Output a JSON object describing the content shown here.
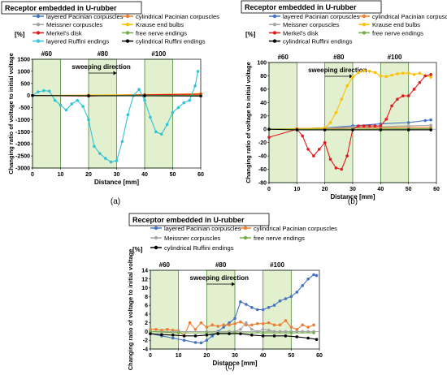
{
  "colors": {
    "layered_pacinian": "#4472c4",
    "cylindrical_pacinian": "#ed7d31",
    "meissner": "#a5a5a5",
    "krause": "#ffc000",
    "merkel": "#e31a1c",
    "free_nerve": "#70ad47",
    "layered_ruffini": "#33c3d6",
    "cylindrical_ruffini": "#000000",
    "zone_fill": "#e2f0d0",
    "zone_stroke": "#4c8a3a"
  },
  "chart_data": [
    {
      "type": "line",
      "panel_label": "(a)",
      "title": "Receptor embedded in U-rubber",
      "xlabel": "Distance  [mm]",
      "ylabel": "Changing ratio of voltage to initial voltage",
      "yunit": "[%]",
      "xlim": [
        0,
        60
      ],
      "ylim": [
        -3000,
        1500
      ],
      "xticks": [
        "0",
        "10",
        "20",
        "30",
        "40",
        "50",
        "60"
      ],
      "yticks": [
        "1500",
        "1000",
        "500",
        "0",
        "-500",
        "-1000",
        "-1500",
        "-2000",
        "-2500",
        "-3000"
      ],
      "zones": [
        {
          "label": "#60",
          "x": [
            0,
            10
          ]
        },
        {
          "label": "#80",
          "x": [
            20,
            30
          ]
        },
        {
          "label": "#100",
          "x": [
            40,
            50
          ]
        }
      ],
      "arrow_label": "sweeping direction",
      "legend": [
        "layered Pacinian corpuscles",
        "cylindrical Pacinian corpuscles",
        "Meissner corpuscles",
        "Krause end bulbs",
        "Merkel's disk",
        "free nerve endings",
        "layered Ruffini endings",
        "cylindrical Ruffini endings"
      ],
      "series": [
        {
          "name": "layered Pacinian corpuscles",
          "color_key": "layered_pacinian",
          "x": [
            0,
            20,
            40,
            60
          ],
          "y": [
            0,
            5,
            10,
            15
          ]
        },
        {
          "name": "cylindrical Pacinian corpuscles",
          "color_key": "cylindrical_pacinian",
          "x": [
            0,
            20,
            40,
            60
          ],
          "y": [
            0,
            10,
            15,
            20
          ]
        },
        {
          "name": "Meissner corpuscles",
          "color_key": "meissner",
          "x": [
            0,
            20,
            40,
            60
          ],
          "y": [
            0,
            5,
            5,
            10
          ]
        },
        {
          "name": "Krause end bulbs",
          "color_key": "krause",
          "x": [
            0,
            20,
            40,
            60
          ],
          "y": [
            0,
            20,
            40,
            80
          ]
        },
        {
          "name": "Merkel's disk",
          "color_key": "merkel",
          "x": [
            0,
            20,
            40,
            60
          ],
          "y": [
            0,
            -20,
            30,
            60
          ]
        },
        {
          "name": "free nerve endings",
          "color_key": "free_nerve",
          "x": [
            0,
            20,
            40,
            60
          ],
          "y": [
            0,
            0,
            5,
            5
          ]
        },
        {
          "name": "layered Ruffini endings",
          "color_key": "layered_ruffini",
          "x": [
            0,
            2,
            4,
            6,
            8,
            10,
            12,
            14,
            16,
            18,
            20,
            22,
            24,
            26,
            28,
            30,
            32,
            34,
            36,
            38,
            40,
            42,
            44,
            46,
            48,
            50,
            52,
            54,
            56,
            58,
            59
          ],
          "y": [
            0,
            150,
            200,
            180,
            -200,
            -400,
            -600,
            -350,
            -200,
            -450,
            -1000,
            -2100,
            -2400,
            -2600,
            -2750,
            -2700,
            -1900,
            -800,
            0,
            250,
            -200,
            -900,
            -1500,
            -1600,
            -1200,
            -700,
            -500,
            -300,
            -200,
            400,
            1000
          ]
        },
        {
          "name": "cylindrical Ruffini endings",
          "color_key": "cylindrical_ruffini",
          "x": [
            0,
            20,
            40,
            60
          ],
          "y": [
            0,
            -10,
            -10,
            -20
          ]
        }
      ]
    },
    {
      "type": "line",
      "panel_label": "(b)",
      "title": "Receptor embedded in U-rubber",
      "xlabel": "Distance  [mm]",
      "ylabel": "Changing ratio of voltage to initial voltage",
      "yunit": "[%]",
      "xlim": [
        0,
        60
      ],
      "ylim": [
        -80,
        100
      ],
      "xticks": [
        "0",
        "10",
        "20",
        "30",
        "40",
        "50",
        "60"
      ],
      "yticks": [
        "100",
        "80",
        "60",
        "40",
        "20",
        "0",
        "-20",
        "-40",
        "-60",
        "-80"
      ],
      "zones": [
        {
          "label": "#60",
          "x": [
            0,
            10
          ]
        },
        {
          "label": "#80",
          "x": [
            20,
            30
          ]
        },
        {
          "label": "#100",
          "x": [
            40,
            50
          ]
        }
      ],
      "arrow_label": "sweeping direction",
      "legend": [
        "layered Pacinian corpuscles",
        "cylindrical Pacinian corpuscles",
        "Meissner corpuscles",
        "Krause end bulbs",
        "Merkel's disk",
        "free nerve endings",
        "cylindrical Ruffini endings"
      ],
      "series": [
        {
          "name": "layered Pacinian corpuscles",
          "color_key": "layered_pacinian",
          "x": [
            0,
            10,
            20,
            30,
            40,
            50,
            56,
            58
          ],
          "y": [
            0,
            1,
            2,
            5,
            8,
            10,
            13,
            14
          ]
        },
        {
          "name": "cylindrical Pacinian corpuscles",
          "color_key": "cylindrical_pacinian",
          "x": [
            0,
            10,
            20,
            30,
            40,
            50,
            58
          ],
          "y": [
            0,
            0,
            1,
            2,
            2,
            3,
            3
          ]
        },
        {
          "name": "Meissner corpuscles",
          "color_key": "meissner",
          "x": [
            0,
            10,
            20,
            30,
            40,
            50,
            58
          ],
          "y": [
            0,
            1,
            2,
            3,
            4,
            5,
            6
          ]
        },
        {
          "name": "Krause end bulbs",
          "color_key": "krause",
          "x": [
            0,
            10,
            20,
            22,
            24,
            26,
            28,
            30,
            32,
            34,
            36,
            38,
            40,
            42,
            44,
            46,
            48,
            50,
            52,
            54,
            56,
            58
          ],
          "y": [
            0,
            1,
            2,
            10,
            25,
            45,
            65,
            78,
            85,
            88,
            87,
            85,
            80,
            79,
            81,
            83,
            84,
            84,
            82,
            84,
            80,
            78
          ]
        },
        {
          "name": "Merkel's disk",
          "color_key": "merkel",
          "x": [
            0,
            10,
            12,
            14,
            16,
            18,
            20,
            22,
            24,
            26,
            28,
            30,
            32,
            34,
            36,
            38,
            40,
            42,
            44,
            46,
            48,
            50,
            52,
            54,
            56,
            58
          ],
          "y": [
            -12,
            0,
            -10,
            -30,
            -40,
            -30,
            -20,
            -45,
            -58,
            -60,
            -40,
            0,
            5,
            5,
            5,
            5,
            5,
            15,
            35,
            45,
            50,
            50,
            60,
            70,
            80,
            82
          ]
        },
        {
          "name": "free nerve endings",
          "color_key": "free_nerve",
          "x": [
            0,
            30,
            58
          ],
          "y": [
            0,
            0,
            1
          ]
        },
        {
          "name": "cylindrical Ruffini endings",
          "color_key": "cylindrical_ruffini",
          "x": [
            0,
            10,
            20,
            30,
            40,
            50,
            58
          ],
          "y": [
            0,
            -1,
            -1,
            -1,
            -1,
            -1,
            -1
          ]
        }
      ]
    },
    {
      "type": "line",
      "panel_label": "(c)",
      "title": "Receptor embedded in U-rubber",
      "xlabel": "Distance  [mm]",
      "ylabel": "Changing ratio of voltage to initial voltage",
      "yunit": "[%]",
      "xlim": [
        0,
        60
      ],
      "ylim": [
        -4,
        14
      ],
      "xticks": [
        "0",
        "10",
        "20",
        "30",
        "40",
        "50",
        "60"
      ],
      "yticks": [
        "14",
        "12",
        "10",
        "8",
        "6",
        "4",
        "2",
        "0",
        "-2",
        "-4"
      ],
      "zones": [
        {
          "label": "#60",
          "x": [
            0,
            10
          ]
        },
        {
          "label": "#80",
          "x": [
            20,
            30
          ]
        },
        {
          "label": "#100",
          "x": [
            40,
            50
          ]
        }
      ],
      "arrow_label": "sweeping direction",
      "legend": [
        "layered Pacinian corpuscles",
        "cylindrical Pacinian corpuscles",
        "Meissner corpuscles",
        "free nerve endings",
        "cylindrical Ruffini endings"
      ],
      "series": [
        {
          "name": "layered Pacinian corpuscles",
          "color_key": "layered_pacinian",
          "x": [
            0,
            4,
            8,
            12,
            16,
            18,
            20,
            22,
            24,
            26,
            28,
            30,
            32,
            34,
            36,
            38,
            40,
            42,
            44,
            46,
            48,
            50,
            52,
            54,
            56,
            58,
            59
          ],
          "y": [
            -0.5,
            -1,
            -1.5,
            -2,
            -2.5,
            -2.6,
            -2,
            -1,
            0,
            1,
            2,
            3,
            6.8,
            6.2,
            5.5,
            5,
            5,
            5.5,
            6,
            7,
            7.5,
            8,
            9,
            10.5,
            12,
            13,
            12.8
          ]
        },
        {
          "name": "cylindrical Pacinian corpuscles",
          "color_key": "cylindrical_pacinian",
          "x": [
            0,
            2,
            4,
            6,
            8,
            10,
            12,
            14,
            16,
            18,
            20,
            22,
            24,
            26,
            28,
            30,
            32,
            34,
            36,
            38,
            40,
            42,
            44,
            46,
            48,
            50,
            52,
            54,
            56,
            58
          ],
          "y": [
            0.5,
            0.5,
            0.3,
            0.5,
            0.3,
            0.2,
            -1,
            2,
            0.5,
            2,
            1,
            1.5,
            1.2,
            1.5,
            1.5,
            1.8,
            2.2,
            1.5,
            1.5,
            1.8,
            1.8,
            2,
            1.5,
            1.5,
            2.5,
            1,
            0.5,
            1.5,
            1,
            1.5
          ]
        },
        {
          "name": "Meissner corpuscles",
          "color_key": "meissner",
          "x": [
            0,
            10,
            20,
            28,
            30,
            32,
            34,
            36,
            38,
            40,
            42,
            44,
            46,
            48,
            50,
            52,
            54,
            56,
            58
          ],
          "y": [
            0,
            0,
            0,
            0,
            0,
            0.5,
            2,
            0.5,
            0,
            0.5,
            0.3,
            0,
            0,
            0,
            0,
            0,
            0,
            0,
            0
          ]
        },
        {
          "name": "free nerve endings",
          "color_key": "free_nerve",
          "x": [
            0,
            10,
            20,
            30,
            40,
            50,
            58
          ],
          "y": [
            0,
            -0.3,
            -0.3,
            -0.3,
            -0.3,
            -0.3,
            -0.3
          ]
        },
        {
          "name": "cylindrical Ruffini endings",
          "color_key": "cylindrical_ruffini",
          "x": [
            0,
            4,
            8,
            12,
            16,
            20,
            24,
            28,
            32,
            36,
            40,
            44,
            48,
            52,
            56,
            59
          ],
          "y": [
            -0.5,
            -0.7,
            -0.8,
            -1,
            -1,
            -0.8,
            -0.5,
            -0.5,
            -0.5,
            -0.8,
            -1,
            -1,
            -1,
            -1.2,
            -1.5,
            -1.8
          ]
        }
      ]
    }
  ]
}
